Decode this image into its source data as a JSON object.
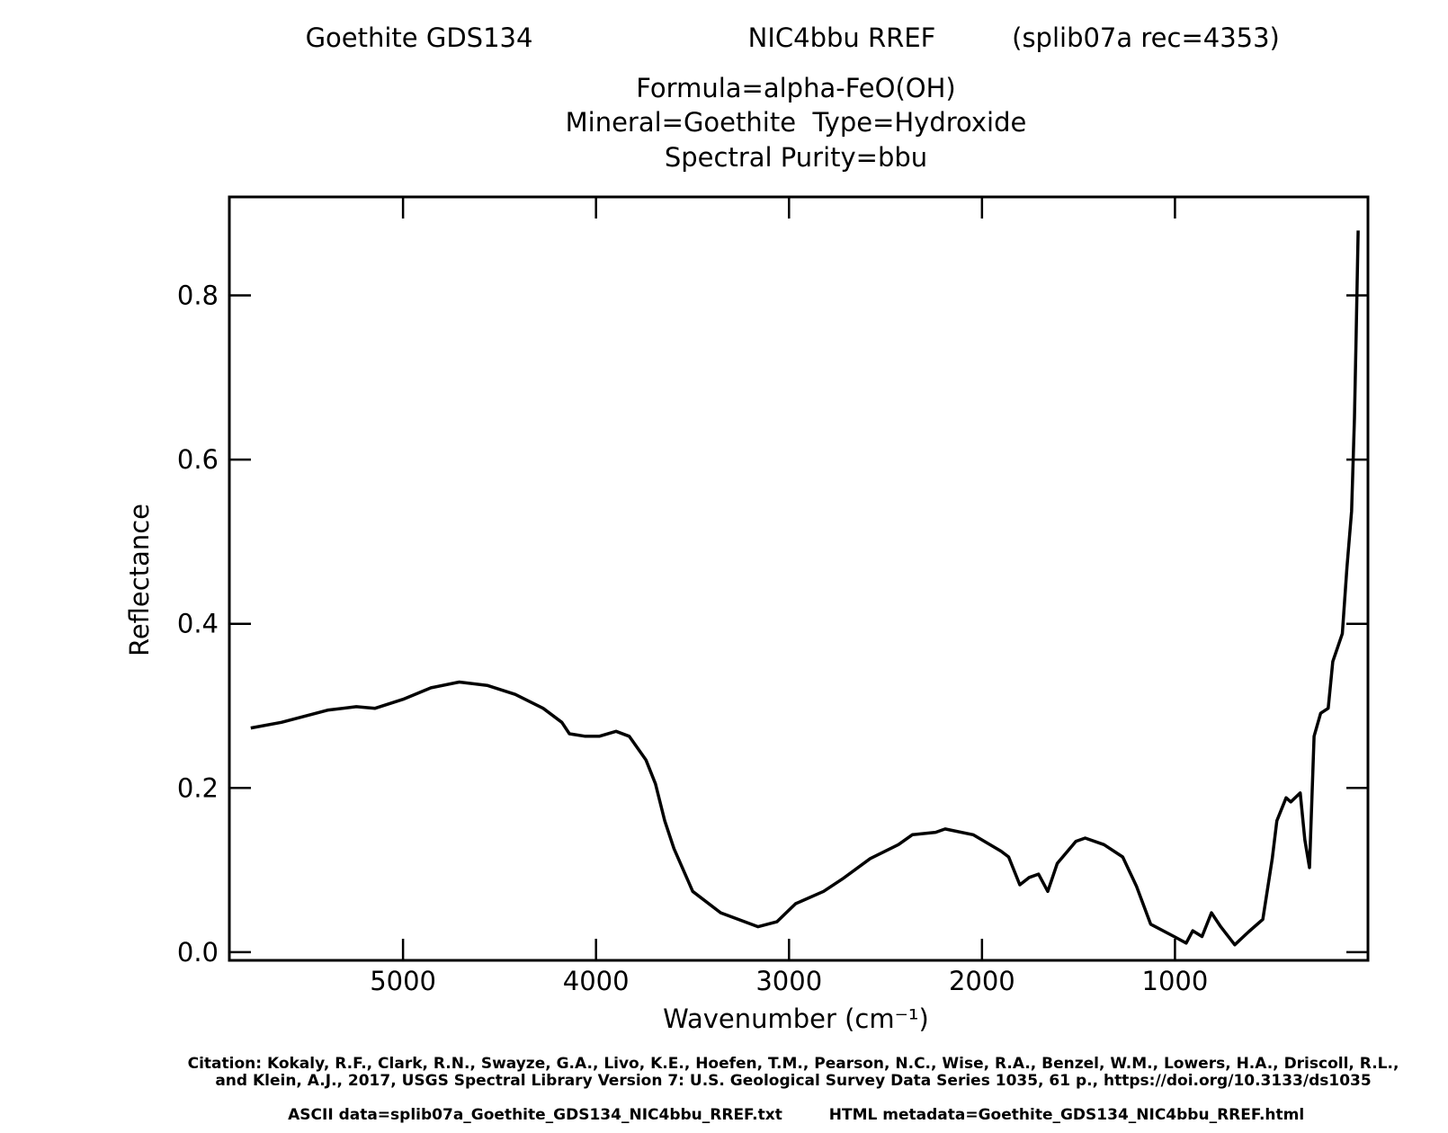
{
  "chart_data": {
    "type": "line",
    "title_sample": "Goethite GDS134",
    "title_record": "NIC4bbu RREF",
    "title_library": "(splib07a rec=4353)",
    "formula": "Formula=alpha-FeO(OH)",
    "mineral_type": "Mineral=Goethite  Type=Hydroxide",
    "purity": "Spectral Purity=bbu",
    "x_label": "Wavenumber (cm⁻¹)",
    "y_label": "Reflectance",
    "citation": [
      "Citation: Kokaly, R.F., Clark, R.N., Swayze, G.A., Livo, K.E., Hoefen, T.M., Pearson, N.C., Wise, R.A., Benzel, W.M., Lowers, H.A., Driscoll, R.L.,",
      "and Klein, A.J., 2017, USGS Spectral Library Version 7: U.S. Geological Survey Data Series 1035, 61 p., https://doi.org/10.3133/ds1035"
    ],
    "ascii_data": "ASCII data=splib07a_Goethite_GDS134_NIC4bbu_RREF.txt",
    "html_metadata": "HTML metadata=Goethite_GDS134_NIC4bbu_RREF.html",
    "color": "#000000",
    "x": [
      5789,
      5630,
      5387,
      5242,
      5145,
      5000,
      4855,
      4709,
      4564,
      4419,
      4274,
      4177,
      4138,
      4056,
      3983,
      3896,
      3828,
      3741,
      3692,
      3644,
      3596,
      3499,
      3354,
      3160,
      3063,
      2966,
      2821,
      2724,
      2579,
      2433,
      2361,
      2240,
      2191,
      2046,
      1901,
      1862,
      1804,
      1755,
      1707,
      1659,
      1610,
      1513,
      1465,
      1368,
      1271,
      1199,
      1126,
      1005,
      942,
      908,
      860,
      811,
      763,
      690,
      617,
      545,
      496,
      472,
      424,
      400,
      351,
      327,
      303,
      279,
      245,
      206,
      182,
      133,
      109,
      85,
      70,
      61,
      51
    ],
    "values": [
      0.273,
      0.28,
      0.295,
      0.299,
      0.297,
      0.308,
      0.322,
      0.329,
      0.325,
      0.314,
      0.297,
      0.28,
      0.266,
      0.263,
      0.263,
      0.269,
      0.263,
      0.234,
      0.205,
      0.16,
      0.126,
      0.074,
      0.048,
      0.031,
      0.037,
      0.059,
      0.074,
      0.089,
      0.114,
      0.131,
      0.143,
      0.146,
      0.15,
      0.143,
      0.123,
      0.116,
      0.082,
      0.091,
      0.095,
      0.074,
      0.108,
      0.135,
      0.139,
      0.131,
      0.116,
      0.08,
      0.034,
      0.019,
      0.011,
      0.026,
      0.019,
      0.048,
      0.031,
      0.009,
      0.025,
      0.04,
      0.114,
      0.16,
      0.188,
      0.183,
      0.194,
      0.137,
      0.103,
      0.263,
      0.291,
      0.297,
      0.354,
      0.388,
      0.468,
      0.537,
      0.651,
      0.753,
      0.879
    ],
    "xlim": [
      5900,
      0
    ],
    "ylim": [
      -0.01,
      0.92
    ],
    "xticks": [
      5000,
      4000,
      3000,
      2000,
      1000
    ],
    "yticks": [
      {
        "value": 0,
        "label": "0.0"
      },
      0.2,
      0.4,
      0.6,
      0.8
    ]
  }
}
